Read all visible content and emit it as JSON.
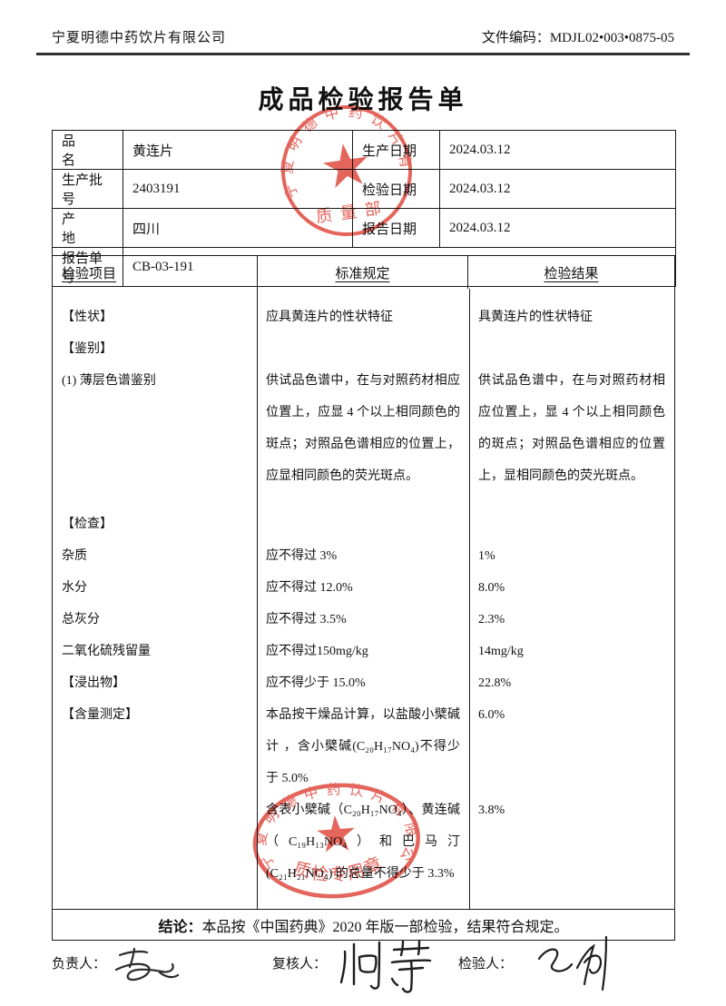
{
  "header": {
    "company": "宁夏明德中药饮片有限公司",
    "doc_code_label": "文件编码：",
    "doc_code": "MDJL02•003•0875-05"
  },
  "title": "成品检验报告单",
  "info": {
    "rows": [
      {
        "label": "品　　名",
        "value": "黄连片",
        "label2": "生产日期",
        "value2": "2024.03.12"
      },
      {
        "label": "生产批号",
        "value": "2403191",
        "label2": "检验日期",
        "value2": "2024.03.12"
      },
      {
        "label": "产　　地",
        "value": "四川",
        "label2": "报告日期",
        "value2": "2024.03.12"
      },
      {
        "label": "报告单号",
        "value": "CB-03-191"
      }
    ]
  },
  "report": {
    "headers": [
      "检验项目",
      "标准规定",
      "检验结果"
    ],
    "rows": [
      {
        "item": "【性状】",
        "std": "应具黄连片的性状特征",
        "res": "具黄连片的性状特征"
      },
      {
        "item": "【鉴别】",
        "std": "",
        "res": ""
      },
      {
        "item": "(1) 薄层色谱鉴别",
        "std": "供试品色谱中，在与对照药材相应位置上，应显 4 个以上相同颜色的斑点；对照品色谱相应的位置上，应显相同颜色的荧光斑点。",
        "res": "供试品色谱中，在与对照药材相应位置上，显 4 个以上相同颜色的斑点；对照品色谱相应的位置上，显相同颜色的荧光斑点。"
      },
      {
        "item": "",
        "std": "",
        "res": ""
      },
      {
        "item": "【检查】",
        "std": "",
        "res": ""
      },
      {
        "item": "杂质",
        "std": "应不得过 3%",
        "res": "1%"
      },
      {
        "item": "水分",
        "std": "应不得过 12.0%",
        "res": "8.0%"
      },
      {
        "item": "总灰分",
        "std": "应不得过 3.5%",
        "res": "2.3%"
      },
      {
        "item": "二氧化硫残留量",
        "std": "应不得过150mg/kg",
        "res": "14mg/kg"
      },
      {
        "item": "【浸出物】",
        "std": "应不得少于 15.0%",
        "res": "22.8%"
      },
      {
        "item": "【含量测定】",
        "std": "本品按干燥品计算，以盐酸小檗碱计 ，含小檗碱(C₂₀H₁₇NO₄)不得少于 5.0%",
        "res": "6.0%"
      },
      {
        "item": "",
        "std": "含表小檗碱（C₂₀H₁₇NO₄）、黄连碱（C₁₉H₁₃NO₄）和巴马汀(C₂₁H₂₁NO₄) 的总量不得少于 3.3%",
        "res": "3.8%"
      }
    ],
    "conclusion_label": "结论：",
    "conclusion_text": "本品按《中国药典》2020 年版一部检验，结果符合规定。"
  },
  "stamps": {
    "color": "#dd4338",
    "top": {
      "ring_text": "宁夏明德中药饮片有限公司",
      "center_text": "质量部"
    },
    "bottom": {
      "ring_text": "宁夏明德中药饮片有限公司",
      "center_text": "质检专用章"
    }
  },
  "footer": {
    "fields": [
      {
        "label": "负责人："
      },
      {
        "label": "复核人：",
        "signature": "何萍"
      },
      {
        "label": "检验人："
      }
    ]
  }
}
